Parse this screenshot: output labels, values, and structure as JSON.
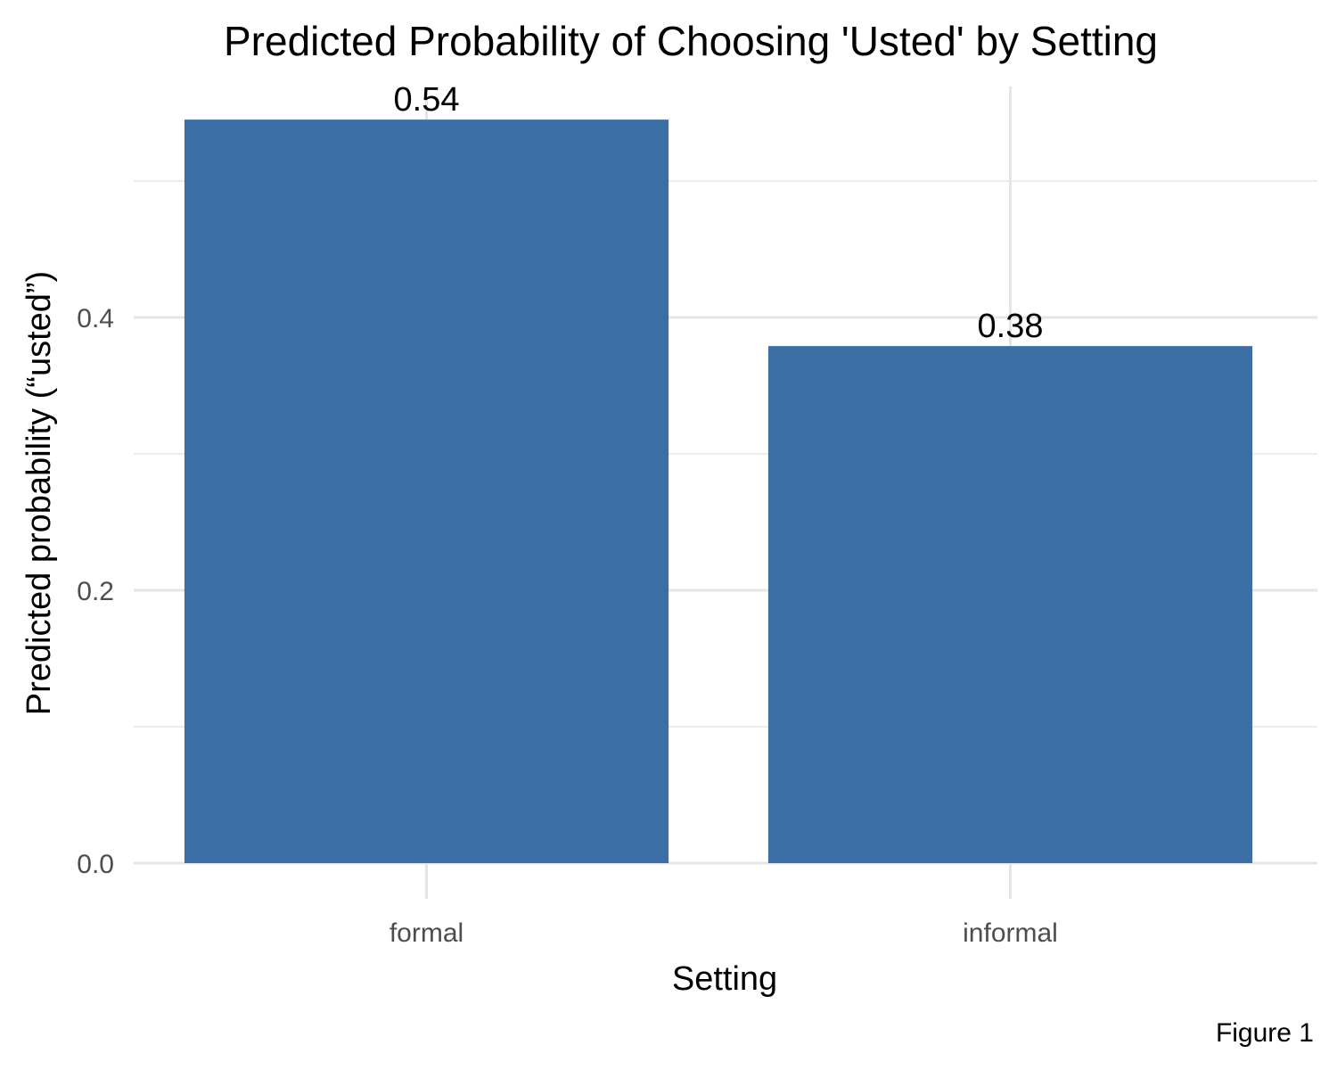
{
  "chart_data": {
    "type": "bar",
    "title": "Predicted Probability of Choosing 'Usted' by Setting",
    "xlabel": "Setting",
    "ylabel": "Predicted probability (“usted”)",
    "categories": [
      "formal",
      "informal"
    ],
    "values": [
      0.545,
      0.379
    ],
    "data_labels": [
      "0.54",
      "0.38"
    ],
    "y_ticks": [
      0.0,
      0.2,
      0.4
    ],
    "y_tick_labels": [
      "0.0",
      "0.2",
      "0.4"
    ],
    "y_minor_ticks": [
      0.1,
      0.3,
      0.5
    ],
    "ylim": [
      0,
      0.575
    ],
    "grid": true,
    "legend": "none",
    "bar_color": "#3A6EA5",
    "caption": "Figure 1"
  }
}
